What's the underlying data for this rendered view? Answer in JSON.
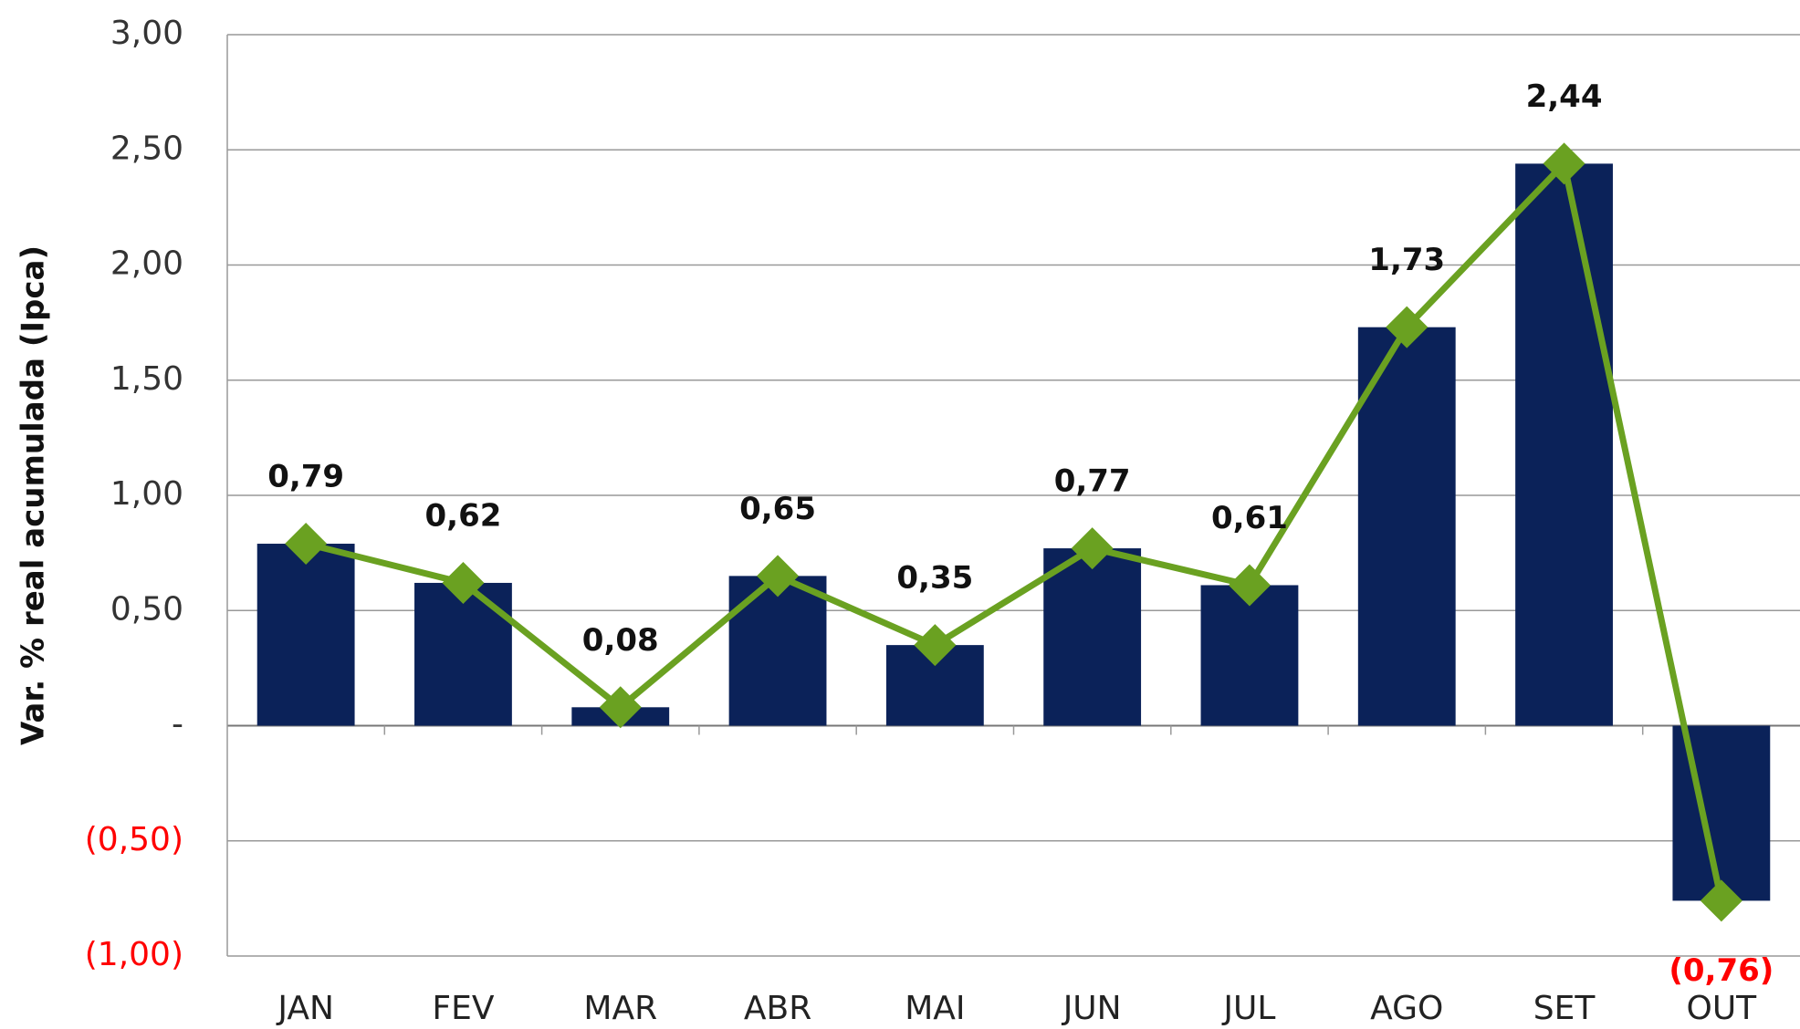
{
  "chart_data": {
    "type": "bar",
    "y_label": "Var. % real acumulada (Ipca)",
    "categories": [
      "JAN",
      "FEV",
      "MAR",
      "ABR",
      "MAI",
      "JUN",
      "JUL",
      "AGO",
      "SET",
      "OUT"
    ],
    "values": [
      0.79,
      0.62,
      0.08,
      0.65,
      0.35,
      0.77,
      0.61,
      1.73,
      2.44,
      -0.76
    ],
    "value_labels": [
      "0,79",
      "0,62",
      "0,08",
      "0,65",
      "0,35",
      "0,77",
      "0,61",
      "1,73",
      "2,44",
      "(0,76)"
    ],
    "color": "#0b2259",
    "line_overlay": true,
    "line_color": "#6aa121",
    "negative_color": "#ff0000",
    "ylim": [
      -1,
      3
    ],
    "yticks": [
      {
        "value": -1,
        "label": "(1,00)"
      },
      {
        "value": -0.5,
        "label": "(0,50)"
      },
      {
        "value": 0,
        "label": "-"
      },
      {
        "value": 0.5,
        "label": "0,50"
      },
      {
        "value": 1,
        "label": "1,00"
      },
      {
        "value": 1.5,
        "label": "1,50"
      },
      {
        "value": 2,
        "label": "2,00"
      },
      {
        "value": 2.5,
        "label": "2,50"
      },
      {
        "value": 3,
        "label": "3,00"
      }
    ],
    "grid": true
  }
}
